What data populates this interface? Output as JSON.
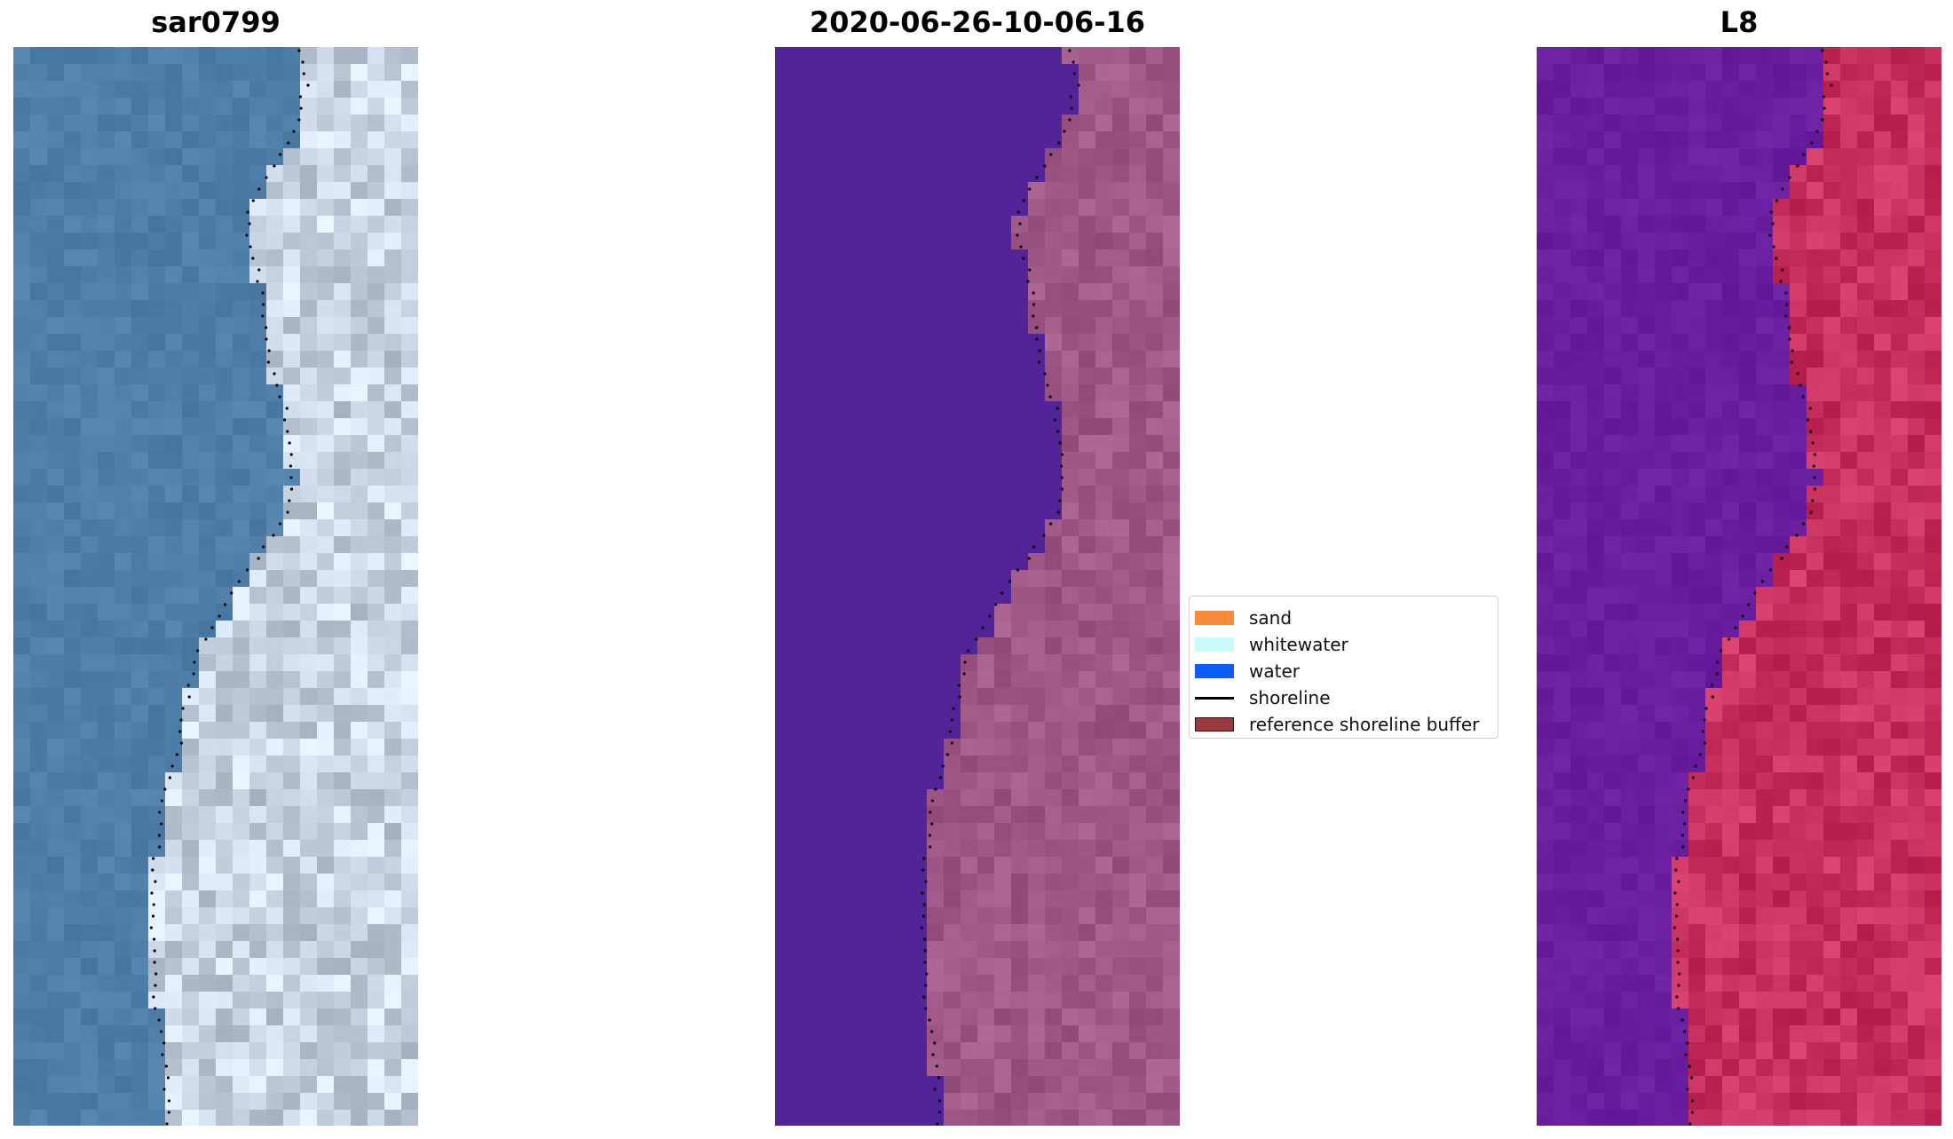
{
  "panels": [
    {
      "title": "sar0799"
    },
    {
      "title": "2020-06-26-10-06-16"
    },
    {
      "title": "L8"
    }
  ],
  "legend": {
    "items": [
      {
        "label": "sand",
        "color": "#f98c3c",
        "kind": "patch"
      },
      {
        "label": "whitewater",
        "color": "#c9fdfb",
        "kind": "patch"
      },
      {
        "label": "water",
        "color": "#0a5cf2",
        "kind": "patch"
      },
      {
        "label": "shoreline",
        "color": "#000000",
        "kind": "line"
      },
      {
        "label": "reference shoreline buffer",
        "color": "#9b3a3e",
        "kind": "patch"
      }
    ]
  },
  "colors": {
    "rgb_water": "#4f7fa8",
    "rgb_land": "#c8d4e4",
    "class_water": "#532398",
    "class_land": "#a05888",
    "ndwi_water": "#6a1d9e",
    "ndwi_land": "#c8305e"
  }
}
